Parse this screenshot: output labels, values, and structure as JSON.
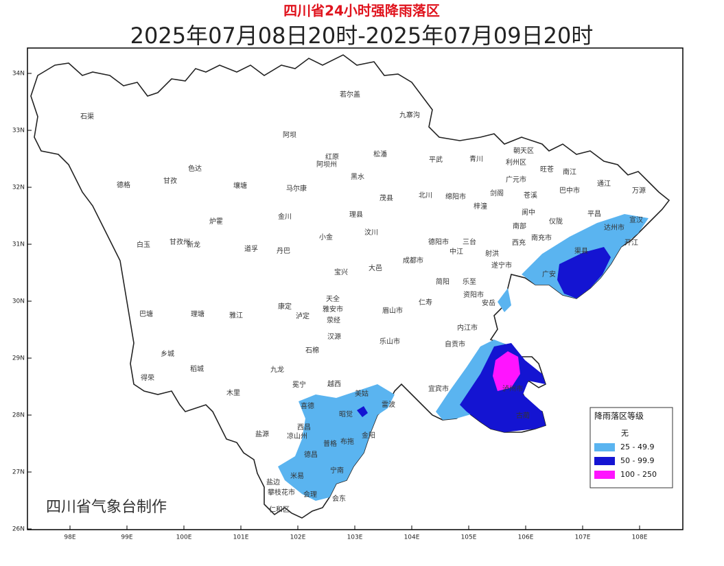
{
  "header": {
    "title": "四川省24小时强降雨落区",
    "subtitle": "2025年07月08日20时-2025年07月09日20时"
  },
  "map": {
    "credit": "四川省气象台制作",
    "lat_ticks": [
      {
        "value": 34,
        "label": "34N"
      },
      {
        "value": 33,
        "label": "33N"
      },
      {
        "value": 32,
        "label": "32N"
      },
      {
        "value": 31,
        "label": "31N"
      },
      {
        "value": 30,
        "label": "30N"
      },
      {
        "value": 29,
        "label": "29N"
      },
      {
        "value": 28,
        "label": "28N"
      },
      {
        "value": 27,
        "label": "27N"
      },
      {
        "value": 26,
        "label": "26N"
      }
    ],
    "lon_ticks": [
      {
        "value": 98,
        "label": "98E"
      },
      {
        "value": 99,
        "label": "99E"
      },
      {
        "value": 100,
        "label": "100E"
      },
      {
        "value": 101,
        "label": "101E"
      },
      {
        "value": 102,
        "label": "102E"
      },
      {
        "value": 103,
        "label": "103E"
      },
      {
        "value": 104,
        "label": "104E"
      },
      {
        "value": 105,
        "label": "105E"
      },
      {
        "value": 106,
        "label": "106E"
      },
      {
        "value": 107,
        "label": "107E"
      },
      {
        "value": 108,
        "label": "108E"
      }
    ],
    "places": [
      "石渠",
      "若尔盖",
      "九寨沟",
      "阿坝",
      "红原",
      "阿坝州",
      "松潘",
      "平武",
      "青川",
      "朝天区",
      "利州区",
      "旺苍",
      "南江",
      "通江",
      "万源",
      "巴中市",
      "色达",
      "德格",
      "甘孜",
      "壤塘",
      "马尔康",
      "黑水",
      "茂县",
      "北川",
      "绵阳市",
      "剑阁",
      "苍溪",
      "广元市",
      "阆中",
      "平昌",
      "宣汉",
      "达州市",
      "炉霍",
      "金川",
      "理县",
      "小金",
      "汶川",
      "梓潼",
      "南部",
      "仪陇",
      "白玉",
      "甘孜州",
      "新龙",
      "道孚",
      "丹巴",
      "德阳市",
      "三台",
      "西充",
      "南充市",
      "渠县",
      "开江",
      "成都市",
      "遂宁市",
      "中江",
      "射洪",
      "宝兴",
      "大邑",
      "广安",
      "巴塘",
      "理塘",
      "雅江",
      "康定",
      "泸定",
      "天全",
      "雅安市",
      "荥经",
      "简阳",
      "乐至",
      "资阳市",
      "安岳",
      "仁寿",
      "眉山市",
      "汉源",
      "石棉",
      "乐山市",
      "内江市",
      "自贡市",
      "乡城",
      "稻城",
      "得荣",
      "九龙",
      "冕宁",
      "越西",
      "木里",
      "宜宾市",
      "泸州市",
      "古蔺",
      "西昌",
      "喜德",
      "昭觉",
      "美姑",
      "雷波",
      "盐源",
      "凉山州",
      "布拖",
      "金阳",
      "普格",
      "德昌",
      "宁南",
      "米易",
      "盐边",
      "攀枝花市",
      "会理",
      "会东",
      "仁和区"
    ]
  },
  "legend": {
    "title": "降雨落区等级",
    "items": [
      {
        "label": "无",
        "color": "#ffffff"
      },
      {
        "label": "25 - 49.9",
        "color": "#5ab4f0"
      },
      {
        "label": "50 - 99.9",
        "color": "#1414d2"
      },
      {
        "label": "100 - 250",
        "color": "#ff14ff"
      }
    ]
  }
}
